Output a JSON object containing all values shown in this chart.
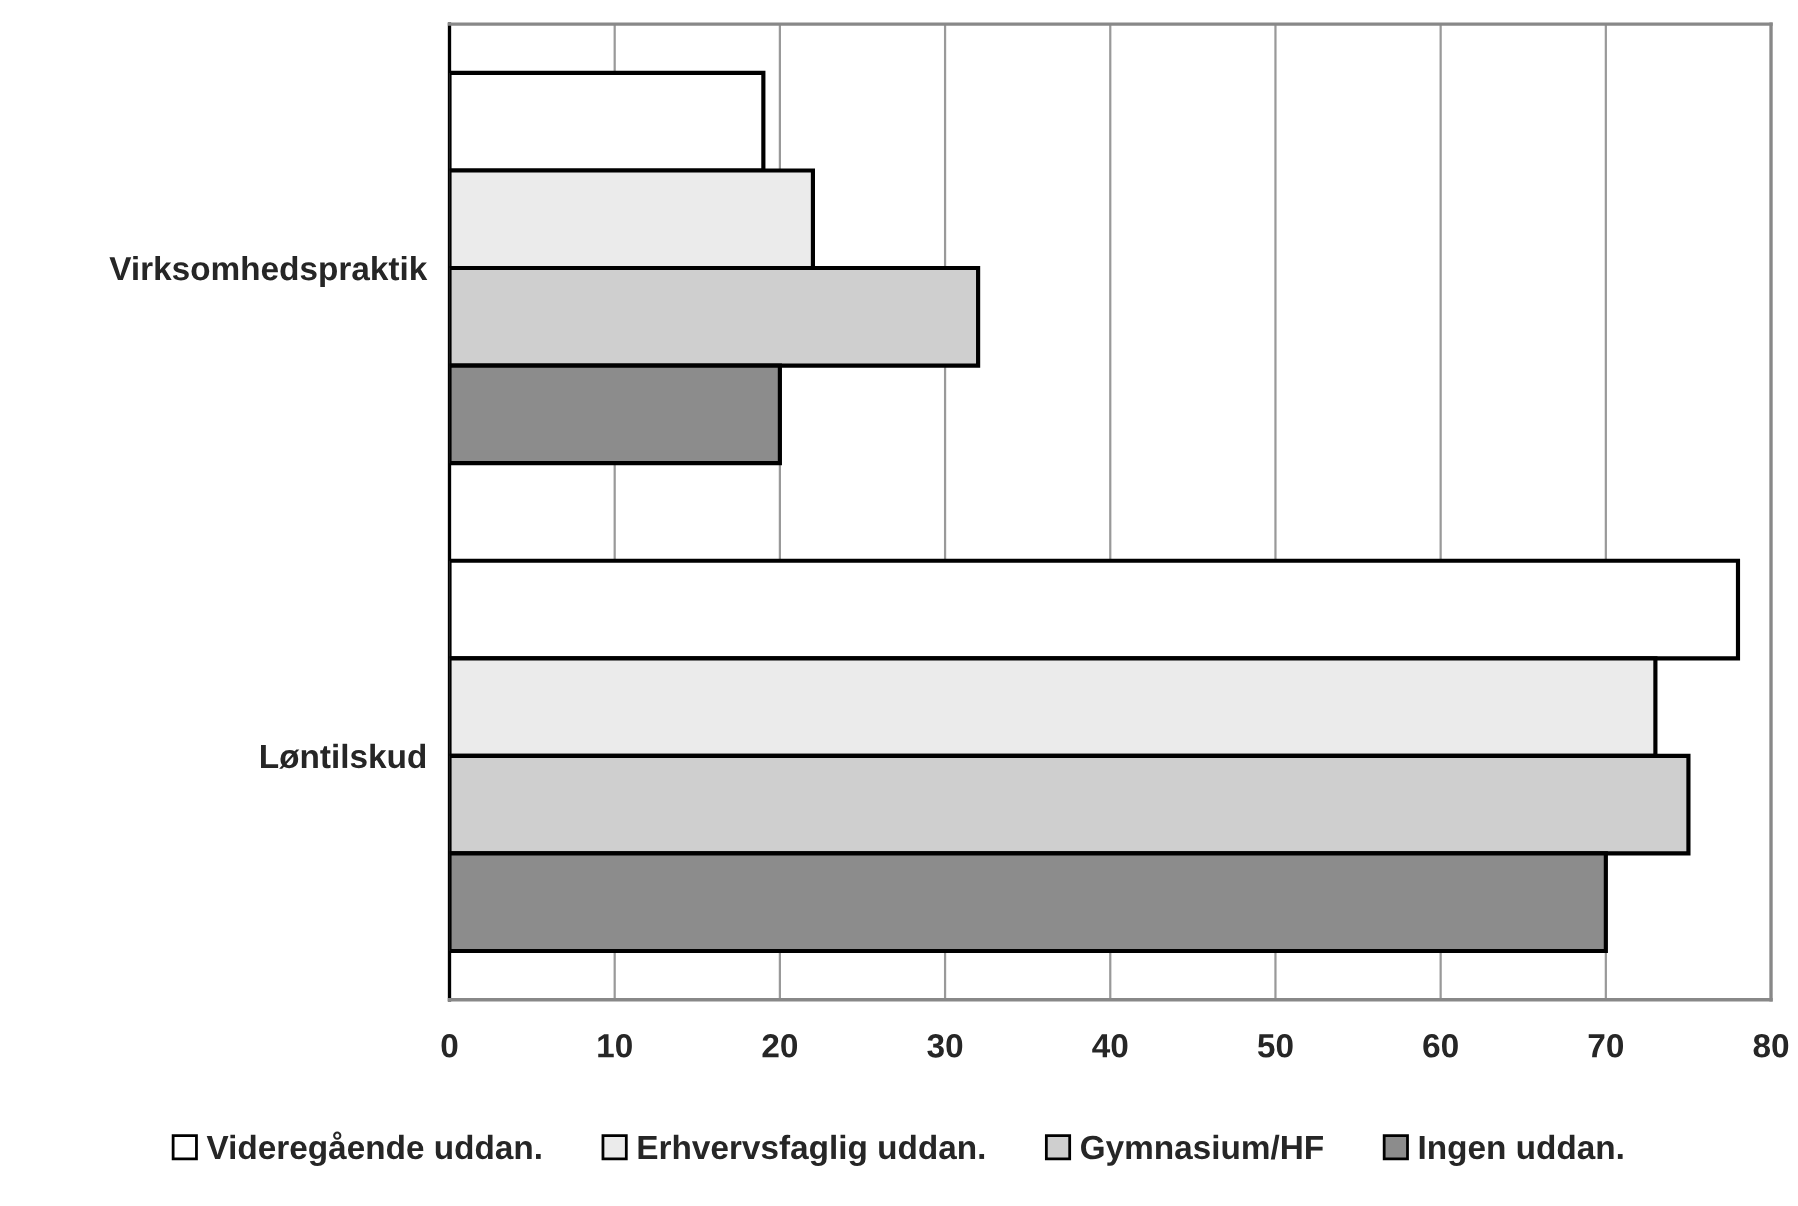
{
  "chart_data": {
    "type": "bar",
    "orientation": "horizontal",
    "categories": [
      "Virksomhedspraktik",
      "Løntilskud"
    ],
    "series": [
      {
        "name": "Videregående uddan.",
        "color": "#ffffff",
        "values": [
          19,
          78
        ]
      },
      {
        "name": "Erhvervsfaglig uddan.",
        "color": "#ebebeb",
        "values": [
          22,
          73
        ]
      },
      {
        "name": "Gymnasium/HF",
        "color": "#cfcfcf",
        "values": [
          32,
          75
        ]
      },
      {
        "name": "Ingen uddan.",
        "color": "#8c8c8c",
        "values": [
          20,
          70
        ]
      }
    ],
    "xlim": [
      0,
      80
    ],
    "xticks": [
      0,
      10,
      20,
      30,
      40,
      50,
      60,
      70,
      80
    ],
    "grid": "x",
    "legend": "bottom"
  }
}
